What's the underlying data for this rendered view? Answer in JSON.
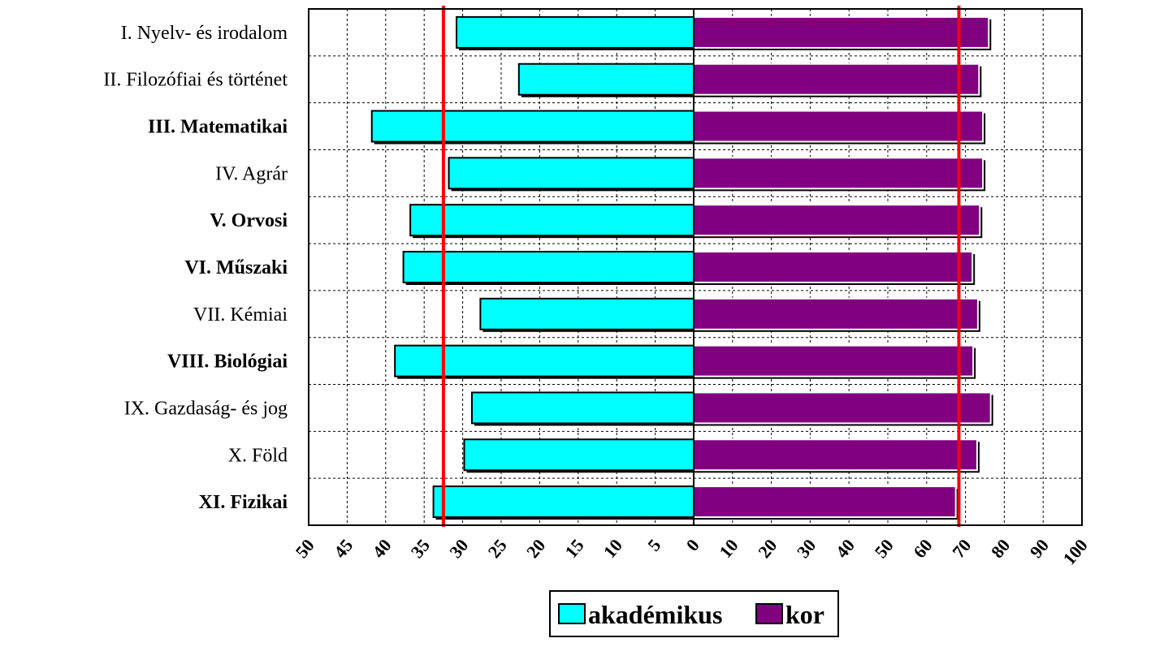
{
  "chart_data": {
    "type": "bar",
    "orientation": "horizontal",
    "layout": "back-to-back",
    "categories": [
      "I. Nyelv- és irodalom",
      "II. Filozófiai és történet",
      "III. Matematikai",
      "IV. Agrár",
      "V. Orvosi",
      "VI. Műszaki",
      "VII. Kémiai",
      "VIII. Biológiai",
      "IX. Gazdaság- és jog",
      "X. Föld",
      "XI. Fizikai"
    ],
    "bold_categories": [
      false,
      false,
      true,
      false,
      true,
      true,
      false,
      true,
      false,
      false,
      true
    ],
    "series": [
      {
        "name": "akadémikus",
        "side": "left",
        "color": "#00FFFF",
        "values": [
          30.8,
          22.7,
          41.8,
          31.8,
          36.8,
          37.7,
          27.7,
          38.8,
          28.8,
          29.8,
          33.8
        ]
      },
      {
        "name": "kor",
        "side": "right",
        "color": "#800080",
        "values": [
          76.0,
          73.5,
          74.5,
          74.5,
          73.7,
          71.8,
          73.2,
          72.0,
          76.5,
          73.0,
          67.5
        ]
      }
    ],
    "left_axis": {
      "ticks": [
        "50",
        "45",
        "40",
        "35",
        "30",
        "25",
        "20",
        "15",
        "10",
        "5",
        "0"
      ],
      "range": [
        50,
        0
      ]
    },
    "right_axis": {
      "ticks": [
        "10",
        "20",
        "30",
        "40",
        "50",
        "60",
        "70",
        "80",
        "90",
        "100"
      ],
      "range": [
        0,
        100
      ]
    },
    "reference_lines": [
      {
        "side": "left",
        "value": 32.5,
        "color": "#FF0000"
      },
      {
        "side": "right",
        "value": 68.3,
        "color": "#FF0000"
      }
    ],
    "grid": true,
    "legend": "bottom-center"
  }
}
